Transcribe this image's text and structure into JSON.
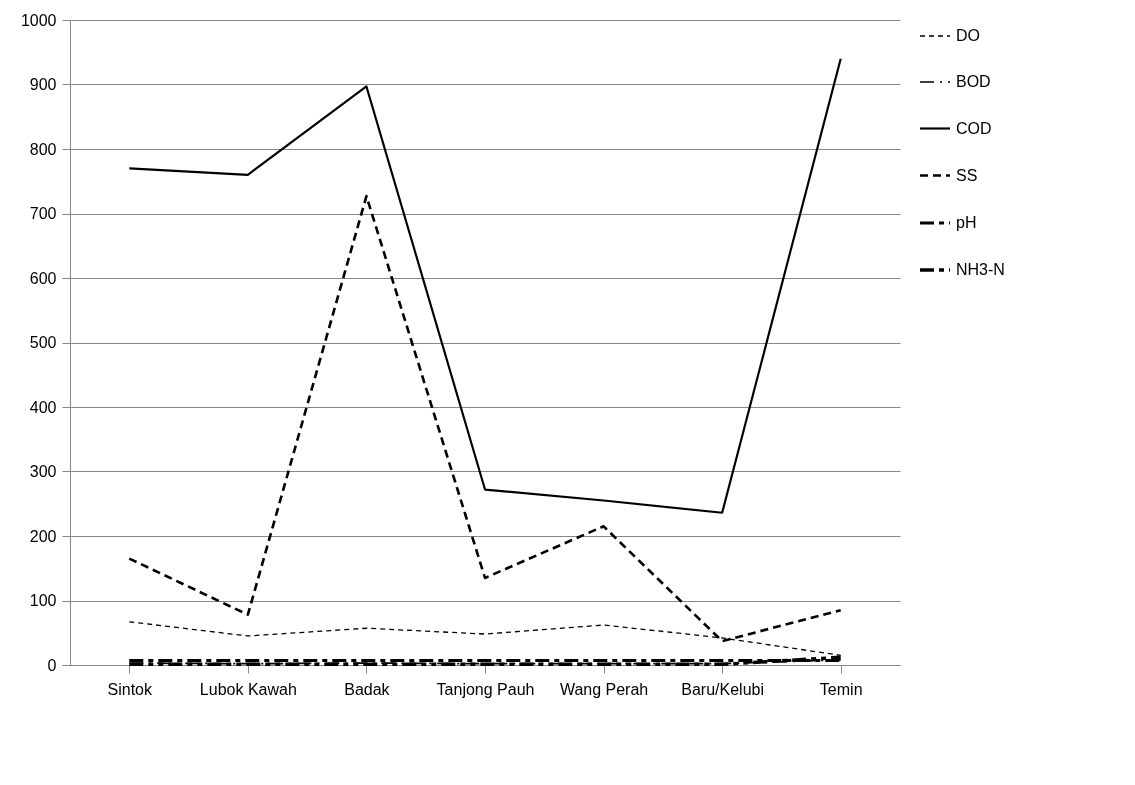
{
  "chart_data": {
    "type": "line",
    "categories": [
      "Sintok",
      "Lubok Kawah",
      "Badak",
      "Tanjong Pauh",
      "Wang Perah",
      "Baru/Kelubi",
      "Temin"
    ],
    "series": [
      {
        "name": "DO",
        "color": "#000000",
        "line_style": "dashed",
        "values": [
          67,
          45,
          57,
          48,
          62,
          42,
          15
        ]
      },
      {
        "name": "BOD",
        "color": "#000000",
        "line_style": "dashed",
        "values": [
          3,
          2,
          3,
          2,
          2,
          2,
          8
        ]
      },
      {
        "name": "COD",
        "color": "#000000",
        "line_style": "solid",
        "values": [
          770,
          760,
          897,
          272,
          255,
          236,
          940
        ]
      },
      {
        "name": "SS",
        "color": "#000000",
        "line_style": "dashed",
        "values": [
          165,
          78,
          727,
          135,
          215,
          37,
          85
        ]
      },
      {
        "name": "pH",
        "color": "#000000",
        "line_style": "dashed",
        "values": [
          7,
          7,
          7,
          7,
          7,
          7,
          7
        ]
      },
      {
        "name": "NH3-N",
        "color": "#000000",
        "line_style": "dashed",
        "values": [
          1,
          1,
          1,
          1,
          1,
          1,
          12
        ]
      }
    ],
    "ylim": [
      0,
      1000
    ],
    "yticks": [
      0,
      100,
      200,
      300,
      400,
      500,
      600,
      700,
      800,
      900,
      1000
    ],
    "grid": "y",
    "legend": "right",
    "marker": "none"
  }
}
